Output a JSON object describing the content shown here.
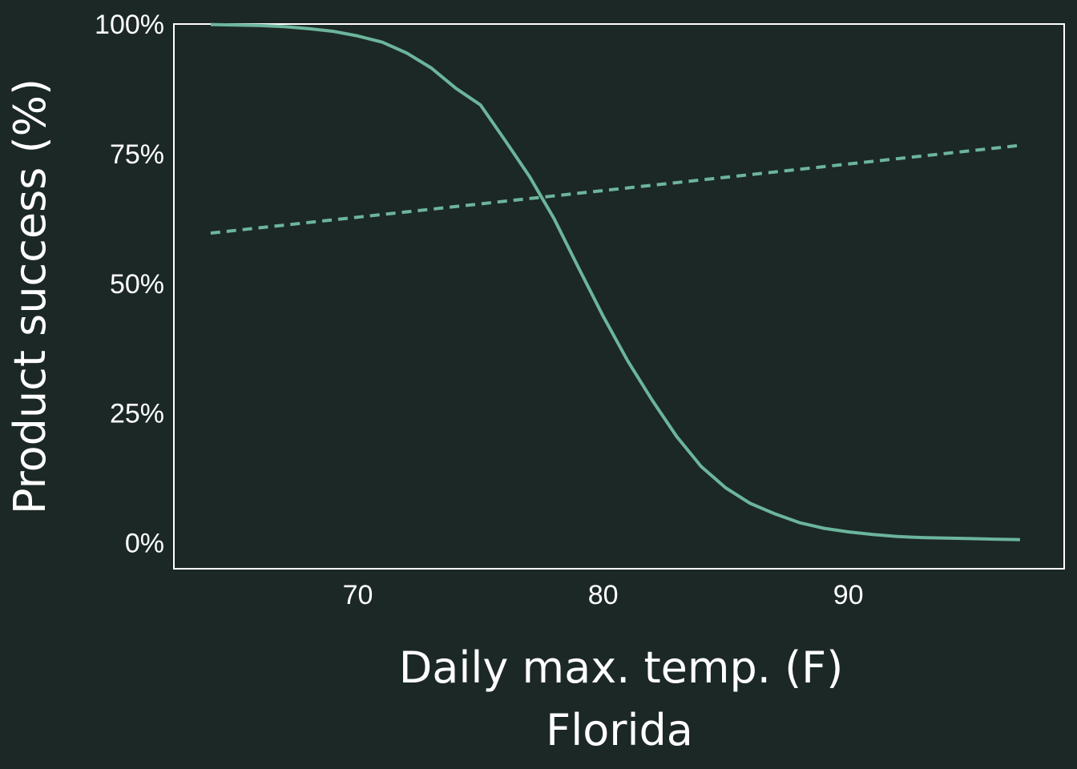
{
  "chart_data": {
    "type": "line",
    "xlabel": "Daily max. temp. (F)",
    "ylabel": "Product success (%)",
    "subtitle": "Florida",
    "xlim": [
      62.5,
      98.8
    ],
    "ylim": [
      -5,
      100
    ],
    "xticks": [
      70,
      80,
      90
    ],
    "xtick_labels": [
      "70",
      "80",
      "90"
    ],
    "yticks": [
      0,
      25,
      50,
      75,
      100
    ],
    "ytick_labels": [
      "0%",
      "25%",
      "50%",
      "75%",
      "100%"
    ],
    "grid": false,
    "series": [
      {
        "style": "solid",
        "color": "#6cb59c",
        "x": [
          64,
          65,
          66,
          67,
          68,
          69,
          70,
          71,
          72,
          73,
          74,
          75,
          76,
          77,
          78,
          79,
          80,
          81,
          82,
          83,
          84,
          85,
          86,
          87,
          88,
          89,
          90,
          91,
          92,
          93,
          94,
          95,
          96,
          97
        ],
        "y": [
          99.9,
          99.8,
          99.7,
          99.5,
          99.1,
          98.6,
          97.7,
          96.5,
          94.4,
          91.5,
          87.6,
          84.4,
          77.6,
          70.6,
          62.5,
          53.0,
          43.7,
          35.1,
          27.5,
          20.5,
          14.7,
          10.6,
          7.6,
          5.6,
          3.9,
          2.8,
          2.1,
          1.6,
          1.2,
          1.0,
          0.9,
          0.8,
          0.7,
          0.6
        ]
      },
      {
        "style": "dashed",
        "color": "#6cb59c",
        "x": [
          64,
          97
        ],
        "y": [
          59.7,
          76.6
        ]
      }
    ]
  },
  "colors": {
    "background": "#1c2826",
    "frame": "#ffffff",
    "text": "#ffffff",
    "line": "#6cb59c"
  }
}
